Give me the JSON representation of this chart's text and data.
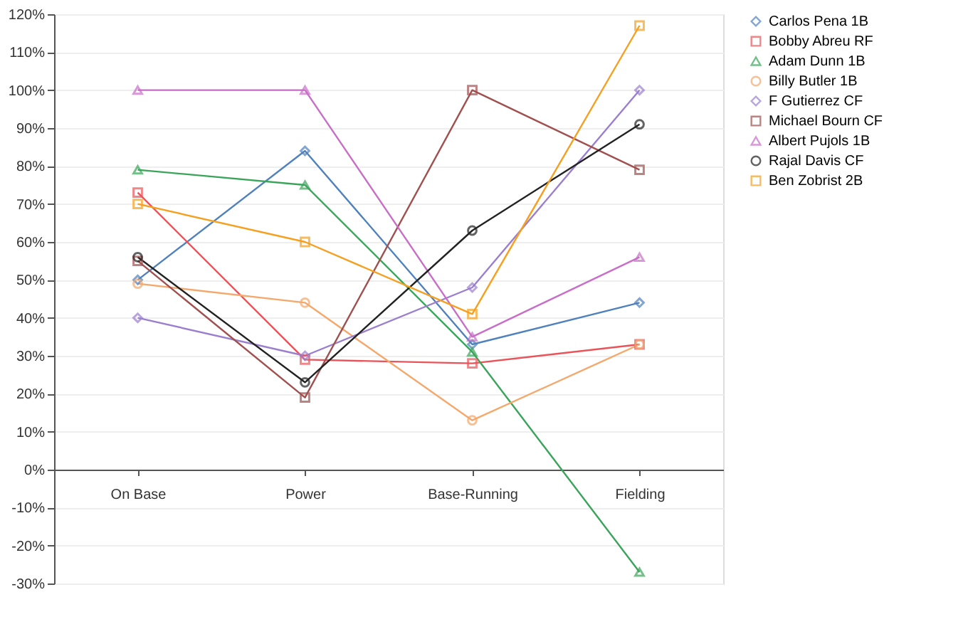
{
  "chart_data": {
    "type": "line",
    "categories": [
      "On Base",
      "Power",
      "Base-Running",
      "Fielding"
    ],
    "series": [
      {
        "name": "Carlos Pena 1B",
        "color": "#4f81bd",
        "marker": "diamond",
        "values": [
          50,
          84,
          33,
          44
        ]
      },
      {
        "name": "Bobby Abreu RF",
        "color": "#e8545a",
        "marker": "square",
        "values": [
          73,
          29,
          28,
          33
        ]
      },
      {
        "name": "Adam Dunn 1B",
        "color": "#3aa55a",
        "marker": "triangle",
        "values": [
          79,
          75,
          31,
          -27
        ]
      },
      {
        "name": "Billy Butler 1B",
        "color": "#f5a86c",
        "marker": "circle",
        "values": [
          49,
          44,
          13,
          33
        ]
      },
      {
        "name": "F Gutierrez CF",
        "color": "#9b7fcf",
        "marker": "diamond",
        "values": [
          40,
          30,
          48,
          100
        ]
      },
      {
        "name": "Michael Bourn CF",
        "color": "#a0504e",
        "marker": "square",
        "values": [
          55,
          19,
          100,
          79
        ]
      },
      {
        "name": "Albert Pujols 1B",
        "color": "#c86ec8",
        "marker": "triangle",
        "values": [
          100,
          100,
          35,
          56
        ]
      },
      {
        "name": "Rajal Davis CF",
        "color": "#222222",
        "marker": "circle",
        "values": [
          56,
          23,
          63,
          91
        ]
      },
      {
        "name": "Ben Zobrist 2B",
        "color": "#f5a020",
        "marker": "square",
        "values": [
          70,
          60,
          41,
          117
        ]
      }
    ],
    "ylim": [
      -30,
      120
    ],
    "yticks": [
      {
        "value": -30,
        "label": "-30%"
      },
      {
        "value": -20,
        "label": "-20%"
      },
      {
        "value": -10,
        "label": "-10%"
      },
      {
        "value": 0,
        "label": "0%"
      },
      {
        "value": 10,
        "label": "10%"
      },
      {
        "value": 20,
        "label": "20%"
      },
      {
        "value": 30,
        "label": "30%"
      },
      {
        "value": 40,
        "label": "40%"
      },
      {
        "value": 50,
        "label": "50%"
      },
      {
        "value": 60,
        "label": "60%"
      },
      {
        "value": 70,
        "label": "70%"
      },
      {
        "value": 80,
        "label": "80%"
      },
      {
        "value": 90,
        "label": "90%"
      },
      {
        "value": 100,
        "label": "100%"
      },
      {
        "value": 110,
        "label": "110%"
      },
      {
        "value": 120,
        "label": "120%"
      }
    ],
    "grid": "y",
    "legend": "right"
  }
}
